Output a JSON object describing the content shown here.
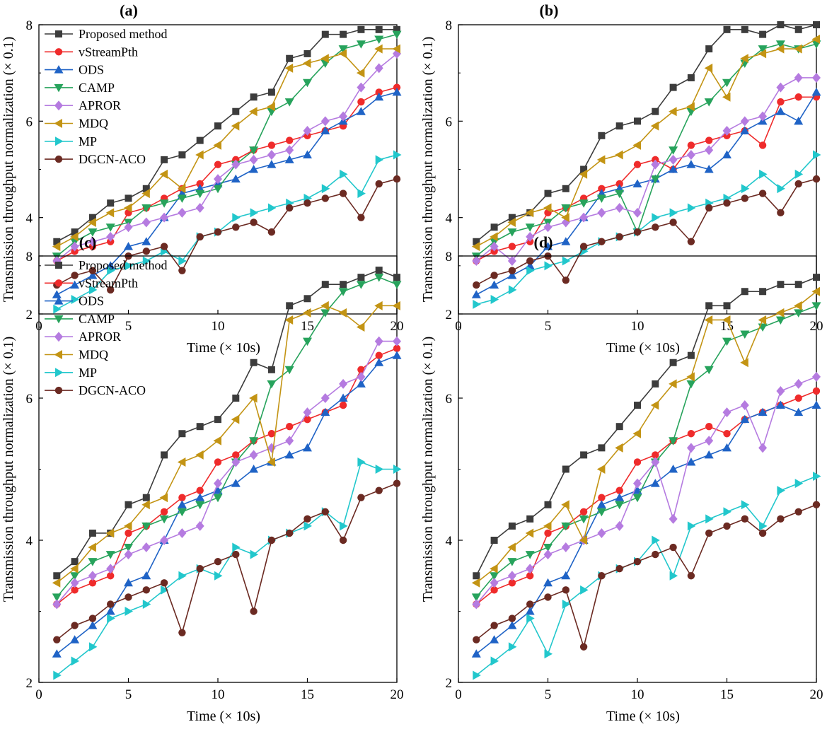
{
  "colors": {
    "Proposed method": "#3c3c3c",
    "vStreamPth": "#ef2b2b",
    "ODS": "#1f63c6",
    "CAMP": "#27a35c",
    "APROR": "#b57be0",
    "MDQ": "#c39414",
    "MP": "#22c7cc",
    "DGCN-ACO": "#6b2a22"
  },
  "markers": {
    "Proposed method": "square",
    "vStreamPth": "circle",
    "ODS": "triangle-up",
    "CAMP": "triangle-down",
    "APROR": "diamond",
    "MDQ": "triangle-left",
    "MP": "triangle-right",
    "DGCN-ACO": "circle"
  },
  "chart_data": [
    {
      "type": "line",
      "title": "(a)",
      "xlabel": "Time (× 10s)",
      "ylabel": "Transmission throughput normalization (× 0.1)",
      "xlim": [
        0,
        20
      ],
      "ylim": [
        2,
        8
      ],
      "xticks": [
        "0",
        "5",
        "10",
        "15",
        "20"
      ],
      "yticks": [
        "2",
        "4",
        "6",
        "8"
      ],
      "legend": true,
      "x": [
        1,
        2,
        3,
        4,
        5,
        6,
        7,
        8,
        9,
        10,
        11,
        12,
        13,
        14,
        15,
        16,
        17,
        18,
        19,
        20
      ],
      "series": [
        {
          "name": "Proposed method",
          "values": [
            3.5,
            3.7,
            4.0,
            4.3,
            4.4,
            4.6,
            5.2,
            5.3,
            5.6,
            5.9,
            6.2,
            6.5,
            6.6,
            7.3,
            7.4,
            7.8,
            7.8,
            7.9,
            7.9,
            7.9
          ]
        },
        {
          "name": "vStreamPth",
          "values": [
            3.1,
            3.3,
            3.4,
            3.5,
            4.1,
            4.2,
            4.4,
            4.6,
            4.7,
            5.1,
            5.2,
            5.4,
            5.5,
            5.6,
            5.7,
            5.8,
            5.9,
            6.4,
            6.6,
            6.7
          ]
        },
        {
          "name": "ODS",
          "values": [
            2.4,
            2.6,
            2.8,
            3.0,
            3.4,
            3.5,
            4.0,
            4.5,
            4.6,
            4.7,
            4.8,
            5.0,
            5.1,
            5.2,
            5.3,
            5.8,
            6.0,
            6.2,
            6.5,
            6.6
          ]
        },
        {
          "name": "CAMP",
          "values": [
            3.2,
            3.5,
            3.7,
            3.8,
            3.9,
            4.2,
            4.3,
            4.4,
            4.5,
            4.6,
            5.1,
            5.4,
            6.2,
            6.4,
            6.8,
            7.2,
            7.5,
            7.6,
            7.7,
            7.8
          ]
        },
        {
          "name": "APROR",
          "values": [
            3.1,
            3.4,
            3.5,
            3.6,
            3.8,
            3.9,
            4.0,
            4.1,
            4.2,
            4.8,
            5.1,
            5.2,
            5.3,
            5.4,
            5.8,
            6.0,
            6.1,
            6.7,
            7.1,
            7.4
          ]
        },
        {
          "name": "MDQ",
          "values": [
            3.4,
            3.6,
            3.9,
            4.1,
            4.2,
            4.5,
            4.9,
            4.6,
            5.3,
            5.5,
            5.9,
            6.2,
            6.3,
            7.1,
            7.2,
            7.3,
            7.4,
            7.0,
            7.5,
            7.5
          ]
        },
        {
          "name": "MP",
          "values": [
            2.1,
            2.3,
            2.5,
            2.9,
            3.0,
            3.1,
            3.3,
            3.1,
            3.6,
            3.7,
            4.0,
            4.1,
            4.2,
            4.3,
            4.4,
            4.6,
            4.9,
            4.5,
            5.2,
            5.3
          ]
        },
        {
          "name": "DGCN-ACO",
          "values": [
            2.6,
            2.8,
            2.9,
            2.5,
            3.2,
            3.3,
            3.4,
            2.9,
            3.6,
            3.7,
            3.8,
            3.9,
            3.7,
            4.2,
            4.3,
            4.4,
            4.5,
            4.0,
            4.7,
            4.8
          ]
        }
      ]
    },
    {
      "type": "line",
      "title": "(b)",
      "xlabel": "Time (× 10s)",
      "ylabel": "Transmission throughput normalization (× 0.1)",
      "xlim": [
        0,
        20
      ],
      "ylim": [
        2,
        8
      ],
      "xticks": [
        "0",
        "5",
        "10",
        "15",
        "20"
      ],
      "yticks": [
        "2",
        "4",
        "6",
        "8"
      ],
      "legend": false,
      "x": [
        1,
        2,
        3,
        4,
        5,
        6,
        7,
        8,
        9,
        10,
        11,
        12,
        13,
        14,
        15,
        16,
        17,
        18,
        19,
        20
      ],
      "series": [
        {
          "name": "Proposed method",
          "values": [
            3.5,
            3.8,
            4.0,
            4.1,
            4.5,
            4.6,
            5.0,
            5.7,
            5.9,
            6.0,
            6.2,
            6.7,
            6.9,
            7.5,
            7.9,
            7.9,
            7.8,
            8.0,
            7.9,
            8.0
          ]
        },
        {
          "name": "vStreamPth",
          "values": [
            3.1,
            3.3,
            3.4,
            3.5,
            4.1,
            4.2,
            4.4,
            4.6,
            4.7,
            5.1,
            5.2,
            5.0,
            5.5,
            5.6,
            5.7,
            5.8,
            5.5,
            6.4,
            6.5,
            6.5
          ]
        },
        {
          "name": "ODS",
          "values": [
            2.4,
            2.6,
            2.8,
            3.0,
            3.4,
            3.5,
            4.0,
            4.5,
            4.6,
            4.7,
            4.8,
            5.0,
            5.1,
            5.0,
            5.3,
            5.8,
            6.0,
            6.2,
            6.0,
            6.6
          ]
        },
        {
          "name": "CAMP",
          "values": [
            3.2,
            3.5,
            3.7,
            3.8,
            3.9,
            4.2,
            4.3,
            4.4,
            4.5,
            3.7,
            4.8,
            5.4,
            6.2,
            6.4,
            6.8,
            7.2,
            7.5,
            7.6,
            7.5,
            7.6
          ]
        },
        {
          "name": "APROR",
          "values": [
            3.1,
            3.4,
            3.1,
            3.6,
            3.8,
            3.9,
            4.0,
            4.1,
            4.2,
            4.1,
            5.1,
            5.2,
            5.3,
            5.4,
            5.8,
            6.0,
            6.1,
            6.7,
            6.9,
            6.9
          ]
        },
        {
          "name": "MDQ",
          "values": [
            3.4,
            3.6,
            3.9,
            4.1,
            4.2,
            4.0,
            4.9,
            5.2,
            5.3,
            5.5,
            5.9,
            6.2,
            6.3,
            7.1,
            6.5,
            7.3,
            7.4,
            7.5,
            7.5,
            7.7
          ]
        },
        {
          "name": "MP",
          "values": [
            2.2,
            2.3,
            2.5,
            2.9,
            3.0,
            3.1,
            3.3,
            3.5,
            3.6,
            3.7,
            4.0,
            4.1,
            4.2,
            4.3,
            4.4,
            4.6,
            4.9,
            4.6,
            4.9,
            5.3
          ]
        },
        {
          "name": "DGCN-ACO",
          "values": [
            2.6,
            2.8,
            2.9,
            3.1,
            3.2,
            2.7,
            3.4,
            3.5,
            3.6,
            3.7,
            3.8,
            3.9,
            3.5,
            4.2,
            4.3,
            4.4,
            4.5,
            4.1,
            4.7,
            4.8
          ]
        }
      ]
    },
    {
      "type": "line",
      "title": "(c)",
      "xlabel": "Time (× 10s)",
      "ylabel": "Transmission throughput normalization (× 0.1)",
      "xlim": [
        0,
        20
      ],
      "ylim": [
        2,
        8
      ],
      "xticks": [
        "0",
        "5",
        "10",
        "15",
        "20"
      ],
      "yticks": [
        "2",
        "4",
        "6",
        "8"
      ],
      "legend": true,
      "x": [
        1,
        2,
        3,
        4,
        5,
        6,
        7,
        8,
        9,
        10,
        11,
        12,
        13,
        14,
        15,
        16,
        17,
        18,
        19,
        20
      ],
      "series": [
        {
          "name": "Proposed method",
          "values": [
            3.5,
            3.7,
            4.1,
            4.1,
            4.5,
            4.6,
            5.2,
            5.5,
            5.6,
            5.7,
            6.0,
            6.5,
            6.4,
            7.3,
            7.4,
            7.6,
            7.6,
            7.7,
            7.8,
            7.7
          ]
        },
        {
          "name": "vStreamPth",
          "values": [
            3.1,
            3.3,
            3.4,
            3.5,
            4.1,
            4.2,
            4.4,
            4.6,
            4.7,
            5.1,
            5.2,
            5.4,
            5.5,
            5.6,
            5.7,
            5.8,
            5.9,
            6.4,
            6.6,
            6.7
          ]
        },
        {
          "name": "ODS",
          "values": [
            2.4,
            2.6,
            2.8,
            3.0,
            3.4,
            3.5,
            4.0,
            4.5,
            4.6,
            4.7,
            4.8,
            5.0,
            5.1,
            5.2,
            5.3,
            5.8,
            6.0,
            6.2,
            6.5,
            6.6
          ]
        },
        {
          "name": "CAMP",
          "values": [
            3.2,
            3.5,
            3.7,
            3.8,
            3.9,
            4.2,
            4.3,
            4.4,
            4.5,
            4.6,
            5.1,
            5.4,
            6.2,
            6.4,
            6.8,
            7.2,
            7.5,
            7.6,
            7.7,
            7.6
          ]
        },
        {
          "name": "APROR",
          "values": [
            3.1,
            3.4,
            3.5,
            3.6,
            3.8,
            3.9,
            4.0,
            4.1,
            4.2,
            4.8,
            5.1,
            5.2,
            5.3,
            5.4,
            5.8,
            6.0,
            6.2,
            6.3,
            6.8,
            6.8
          ]
        },
        {
          "name": "MDQ",
          "values": [
            3.4,
            3.6,
            3.9,
            4.1,
            4.2,
            4.5,
            4.6,
            5.1,
            5.2,
            5.4,
            5.7,
            6.0,
            5.1,
            7.1,
            7.2,
            7.3,
            7.2,
            7.0,
            7.3,
            7.3
          ]
        },
        {
          "name": "MP",
          "values": [
            2.1,
            2.3,
            2.5,
            2.9,
            3.0,
            3.1,
            3.3,
            3.5,
            3.6,
            3.5,
            3.9,
            3.8,
            4.0,
            4.1,
            4.2,
            4.4,
            4.2,
            5.1,
            5.0,
            5.0
          ]
        },
        {
          "name": "DGCN-ACO",
          "values": [
            2.6,
            2.8,
            2.9,
            3.1,
            3.2,
            3.3,
            3.4,
            2.7,
            3.6,
            3.7,
            3.8,
            3.0,
            4.0,
            4.1,
            4.3,
            4.4,
            4.0,
            4.6,
            4.7,
            4.8
          ]
        }
      ]
    },
    {
      "type": "line",
      "title": "(d)",
      "xlabel": "Time (× 10s)",
      "ylabel": "Transmission throughput normalization (× 0.1)",
      "xlim": [
        0,
        20
      ],
      "ylim": [
        2,
        8
      ],
      "xticks": [
        "0",
        "5",
        "10",
        "15",
        "20"
      ],
      "yticks": [
        "2",
        "4",
        "6",
        "8"
      ],
      "legend": false,
      "x": [
        1,
        2,
        3,
        4,
        5,
        6,
        7,
        8,
        9,
        10,
        11,
        12,
        13,
        14,
        15,
        16,
        17,
        18,
        19,
        20
      ],
      "series": [
        {
          "name": "Proposed method",
          "values": [
            3.5,
            4.0,
            4.2,
            4.3,
            4.5,
            5.0,
            5.2,
            5.3,
            5.6,
            5.9,
            6.2,
            6.5,
            6.6,
            7.3,
            7.3,
            7.5,
            7.5,
            7.6,
            7.6,
            7.7
          ]
        },
        {
          "name": "vStreamPth",
          "values": [
            3.1,
            3.3,
            3.4,
            3.5,
            4.1,
            4.2,
            4.4,
            4.6,
            4.7,
            5.1,
            5.2,
            5.4,
            5.5,
            5.6,
            5.5,
            5.7,
            5.8,
            5.9,
            6.0,
            6.1
          ]
        },
        {
          "name": "ODS",
          "values": [
            2.4,
            2.6,
            2.8,
            3.0,
            3.4,
            3.5,
            4.0,
            4.5,
            4.6,
            4.7,
            4.8,
            5.0,
            5.1,
            5.2,
            5.3,
            5.7,
            5.8,
            5.9,
            5.8,
            5.9
          ]
        },
        {
          "name": "CAMP",
          "values": [
            3.2,
            3.5,
            3.7,
            3.8,
            3.9,
            4.2,
            4.3,
            4.4,
            4.5,
            4.6,
            5.1,
            5.4,
            6.2,
            6.4,
            6.8,
            6.9,
            7.0,
            7.1,
            7.2,
            7.3
          ]
        },
        {
          "name": "APROR",
          "values": [
            3.1,
            3.4,
            3.5,
            3.6,
            3.8,
            3.9,
            4.0,
            4.1,
            4.2,
            4.8,
            5.1,
            4.3,
            5.3,
            5.4,
            5.8,
            5.9,
            5.3,
            6.1,
            6.2,
            6.3
          ]
        },
        {
          "name": "MDQ",
          "values": [
            3.4,
            3.6,
            3.9,
            4.1,
            4.2,
            4.5,
            4.0,
            5.0,
            5.3,
            5.5,
            5.9,
            6.2,
            6.3,
            7.1,
            7.1,
            6.5,
            7.1,
            7.2,
            7.3,
            7.5
          ]
        },
        {
          "name": "MP",
          "values": [
            2.1,
            2.3,
            2.5,
            2.9,
            2.4,
            3.1,
            3.3,
            3.5,
            3.6,
            3.7,
            4.0,
            3.5,
            4.2,
            4.3,
            4.4,
            4.5,
            4.2,
            4.7,
            4.8,
            4.9
          ]
        },
        {
          "name": "DGCN-ACO",
          "values": [
            2.6,
            2.8,
            2.9,
            3.1,
            3.2,
            3.3,
            2.5,
            3.5,
            3.6,
            3.7,
            3.8,
            3.9,
            3.5,
            4.1,
            4.2,
            4.3,
            4.1,
            4.3,
            4.4,
            4.5
          ]
        }
      ]
    }
  ]
}
